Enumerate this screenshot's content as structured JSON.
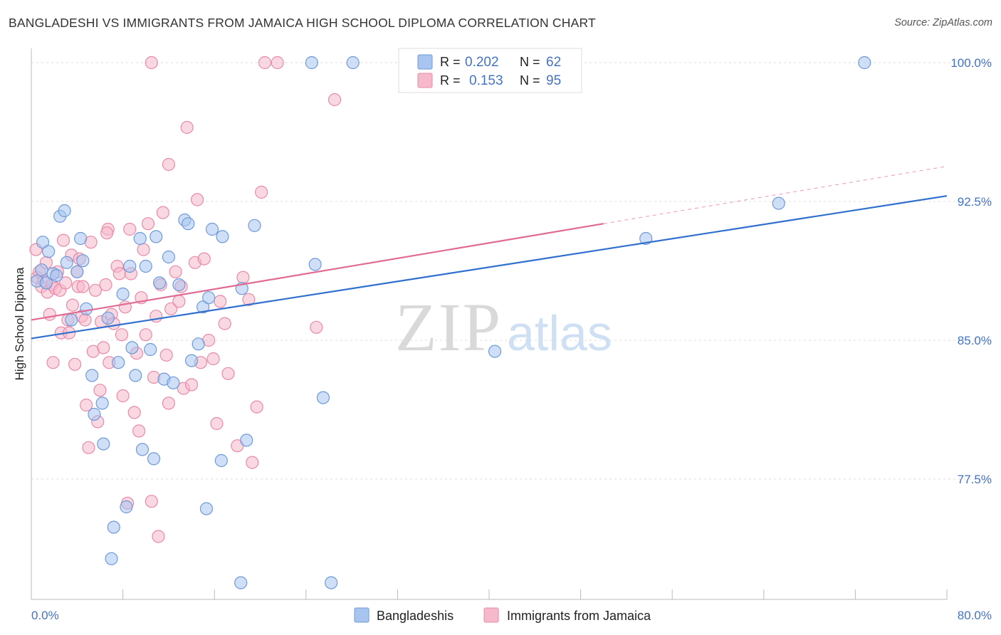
{
  "header": {
    "title": "BANGLADESHI VS IMMIGRANTS FROM JAMAICA HIGH SCHOOL DIPLOMA CORRELATION CHART",
    "source": "Source: ZipAtlas.com"
  },
  "watermark": {
    "zip": "ZIP",
    "atlas": "atlas"
  },
  "colors": {
    "blue_fill": "#a8c5f0",
    "blue_stroke": "#6f9ad8",
    "blue_line": "#2f6fce",
    "pink_fill": "#f6b8cb",
    "pink_stroke": "#e88aa8",
    "pink_line": "#e06a93",
    "tick_label": "#4472c4",
    "grid": "#dcdcdc"
  },
  "chart_data": {
    "type": "scatter",
    "title": "BANGLADESHI VS IMMIGRANTS FROM JAMAICA HIGH SCHOOL DIPLOMA CORRELATION CHART",
    "ylabel": "High School Diploma",
    "xlabel": "",
    "xlim": [
      0,
      80
    ],
    "ylim": [
      71,
      101
    ],
    "x_tick_labels": [
      "0.0%",
      "80.0%"
    ],
    "y_ticks": [
      77.5,
      85.0,
      92.5,
      100.0
    ],
    "y_tick_labels": [
      "77.5%",
      "85.0%",
      "92.5%",
      "100.0%"
    ],
    "grid": true,
    "legend": [
      {
        "name": "Bangladeshis",
        "r_label": "R =",
        "r": "0.202",
        "n_label": "N =",
        "n": "62"
      },
      {
        "name": "Immigrants from Jamaica",
        "r_label": "R =",
        "r": "0.153",
        "n_label": "N =",
        "n": "95"
      }
    ],
    "series": [
      {
        "name": "Bangladeshis",
        "color": "#a8c5f0",
        "trend": {
          "x0": 0,
          "y0": 85.1,
          "x1": 80,
          "y1": 92.8
        },
        "points": [
          [
            0.5,
            88.2
          ],
          [
            0.9,
            88.8
          ],
          [
            1.0,
            90.3
          ],
          [
            1.3,
            88.1
          ],
          [
            1.5,
            89.8
          ],
          [
            1.9,
            88.6
          ],
          [
            2.2,
            88.5
          ],
          [
            2.5,
            91.7
          ],
          [
            2.9,
            92.0
          ],
          [
            3.1,
            89.2
          ],
          [
            3.5,
            86.1
          ],
          [
            4.0,
            88.7
          ],
          [
            4.3,
            90.5
          ],
          [
            4.5,
            89.3
          ],
          [
            4.8,
            86.7
          ],
          [
            5.3,
            83.1
          ],
          [
            5.5,
            81.0
          ],
          [
            6.2,
            81.6
          ],
          [
            6.3,
            79.4
          ],
          [
            6.7,
            86.2
          ],
          [
            7.0,
            73.2
          ],
          [
            7.2,
            74.9
          ],
          [
            7.6,
            83.8
          ],
          [
            8.0,
            87.5
          ],
          [
            8.3,
            76.0
          ],
          [
            8.6,
            89.0
          ],
          [
            8.8,
            84.6
          ],
          [
            9.1,
            83.1
          ],
          [
            9.5,
            90.5
          ],
          [
            9.7,
            79.1
          ],
          [
            10.0,
            89.0
          ],
          [
            10.4,
            84.5
          ],
          [
            10.7,
            78.6
          ],
          [
            10.9,
            90.6
          ],
          [
            11.2,
            88.1
          ],
          [
            11.6,
            82.9
          ],
          [
            12.0,
            89.5
          ],
          [
            12.4,
            82.7
          ],
          [
            12.9,
            88.0
          ],
          [
            13.4,
            91.5
          ],
          [
            13.7,
            91.3
          ],
          [
            14.0,
            83.9
          ],
          [
            14.6,
            84.8
          ],
          [
            15.0,
            86.8
          ],
          [
            15.3,
            75.9
          ],
          [
            15.5,
            87.3
          ],
          [
            15.8,
            91.0
          ],
          [
            16.6,
            78.5
          ],
          [
            16.7,
            90.6
          ],
          [
            18.3,
            71.9
          ],
          [
            18.4,
            87.8
          ],
          [
            18.8,
            79.6
          ],
          [
            19.5,
            91.2
          ],
          [
            24.5,
            100.0
          ],
          [
            24.8,
            89.1
          ],
          [
            25.5,
            81.9
          ],
          [
            26.2,
            71.9
          ],
          [
            28.1,
            100.0
          ],
          [
            40.5,
            84.4
          ],
          [
            53.7,
            90.5
          ],
          [
            65.3,
            92.4
          ],
          [
            72.8,
            100.0
          ]
        ]
      },
      {
        "name": "Immigrants from Jamaica",
        "color": "#f6b8cb",
        "trend": {
          "x0": 0,
          "y0": 86.1,
          "x1": 50,
          "y1": 91.3,
          "dash_x1": 80,
          "dash_y1": 94.4
        },
        "points": [
          [
            0.4,
            89.9
          ],
          [
            0.5,
            88.4
          ],
          [
            0.7,
            88.7
          ],
          [
            0.9,
            87.9
          ],
          [
            1.1,
            88.2
          ],
          [
            1.3,
            89.2
          ],
          [
            1.4,
            87.6
          ],
          [
            1.6,
            86.4
          ],
          [
            1.8,
            88.0
          ],
          [
            1.9,
            83.8
          ],
          [
            2.1,
            87.8
          ],
          [
            2.3,
            88.7
          ],
          [
            2.5,
            87.7
          ],
          [
            2.6,
            85.4
          ],
          [
            2.8,
            90.4
          ],
          [
            3.0,
            88.1
          ],
          [
            3.2,
            86.1
          ],
          [
            3.3,
            85.4
          ],
          [
            3.5,
            89.6
          ],
          [
            3.6,
            86.9
          ],
          [
            3.8,
            83.7
          ],
          [
            4.0,
            88.7
          ],
          [
            4.1,
            87.9
          ],
          [
            4.2,
            89.4
          ],
          [
            4.4,
            86.3
          ],
          [
            4.5,
            87.9
          ],
          [
            4.7,
            86.1
          ],
          [
            4.8,
            81.5
          ],
          [
            5.0,
            79.2
          ],
          [
            5.2,
            90.3
          ],
          [
            5.4,
            84.4
          ],
          [
            5.6,
            87.7
          ],
          [
            5.8,
            80.6
          ],
          [
            6.0,
            82.3
          ],
          [
            6.1,
            86.0
          ],
          [
            6.3,
            84.6
          ],
          [
            6.5,
            88.0
          ],
          [
            6.7,
            91.0
          ],
          [
            6.8,
            83.8
          ],
          [
            7.0,
            86.4
          ],
          [
            7.2,
            85.9
          ],
          [
            7.5,
            89.0
          ],
          [
            7.7,
            88.6
          ],
          [
            7.9,
            85.3
          ],
          [
            8.0,
            82.0
          ],
          [
            8.2,
            86.8
          ],
          [
            8.4,
            76.2
          ],
          [
            8.6,
            91.0
          ],
          [
            8.7,
            88.6
          ],
          [
            9.0,
            81.1
          ],
          [
            9.2,
            84.3
          ],
          [
            9.4,
            80.1
          ],
          [
            9.6,
            87.3
          ],
          [
            9.8,
            89.9
          ],
          [
            10.0,
            85.3
          ],
          [
            10.2,
            91.3
          ],
          [
            10.5,
            76.3
          ],
          [
            10.7,
            83.0
          ],
          [
            10.9,
            86.3
          ],
          [
            11.1,
            74.4
          ],
          [
            11.3,
            88.0
          ],
          [
            11.5,
            91.9
          ],
          [
            11.8,
            84.2
          ],
          [
            12.0,
            81.6
          ],
          [
            12.2,
            86.7
          ],
          [
            12.6,
            88.7
          ],
          [
            12.9,
            87.1
          ],
          [
            13.1,
            87.9
          ],
          [
            13.3,
            82.4
          ],
          [
            13.6,
            96.5
          ],
          [
            14.0,
            82.6
          ],
          [
            14.3,
            89.2
          ],
          [
            14.5,
            92.6
          ],
          [
            14.8,
            83.8
          ],
          [
            15.1,
            89.4
          ],
          [
            15.5,
            85.0
          ],
          [
            15.9,
            84.0
          ],
          [
            16.2,
            80.5
          ],
          [
            16.5,
            87.1
          ],
          [
            16.9,
            85.9
          ],
          [
            17.2,
            83.2
          ],
          [
            18.0,
            79.3
          ],
          [
            18.5,
            88.4
          ],
          [
            19.0,
            87.2
          ],
          [
            19.3,
            78.4
          ],
          [
            19.7,
            81.4
          ],
          [
            20.1,
            93.0
          ],
          [
            20.4,
            100.0
          ],
          [
            21.5,
            100.0
          ],
          [
            24.9,
            85.7
          ],
          [
            26.5,
            98.0
          ],
          [
            12.0,
            94.5
          ],
          [
            10.5,
            100.0
          ],
          [
            42.0,
            100.0
          ],
          [
            6.6,
            90.8
          ]
        ]
      }
    ]
  },
  "bottom_legend": [
    "Bangladeshis",
    "Immigrants from Jamaica"
  ]
}
